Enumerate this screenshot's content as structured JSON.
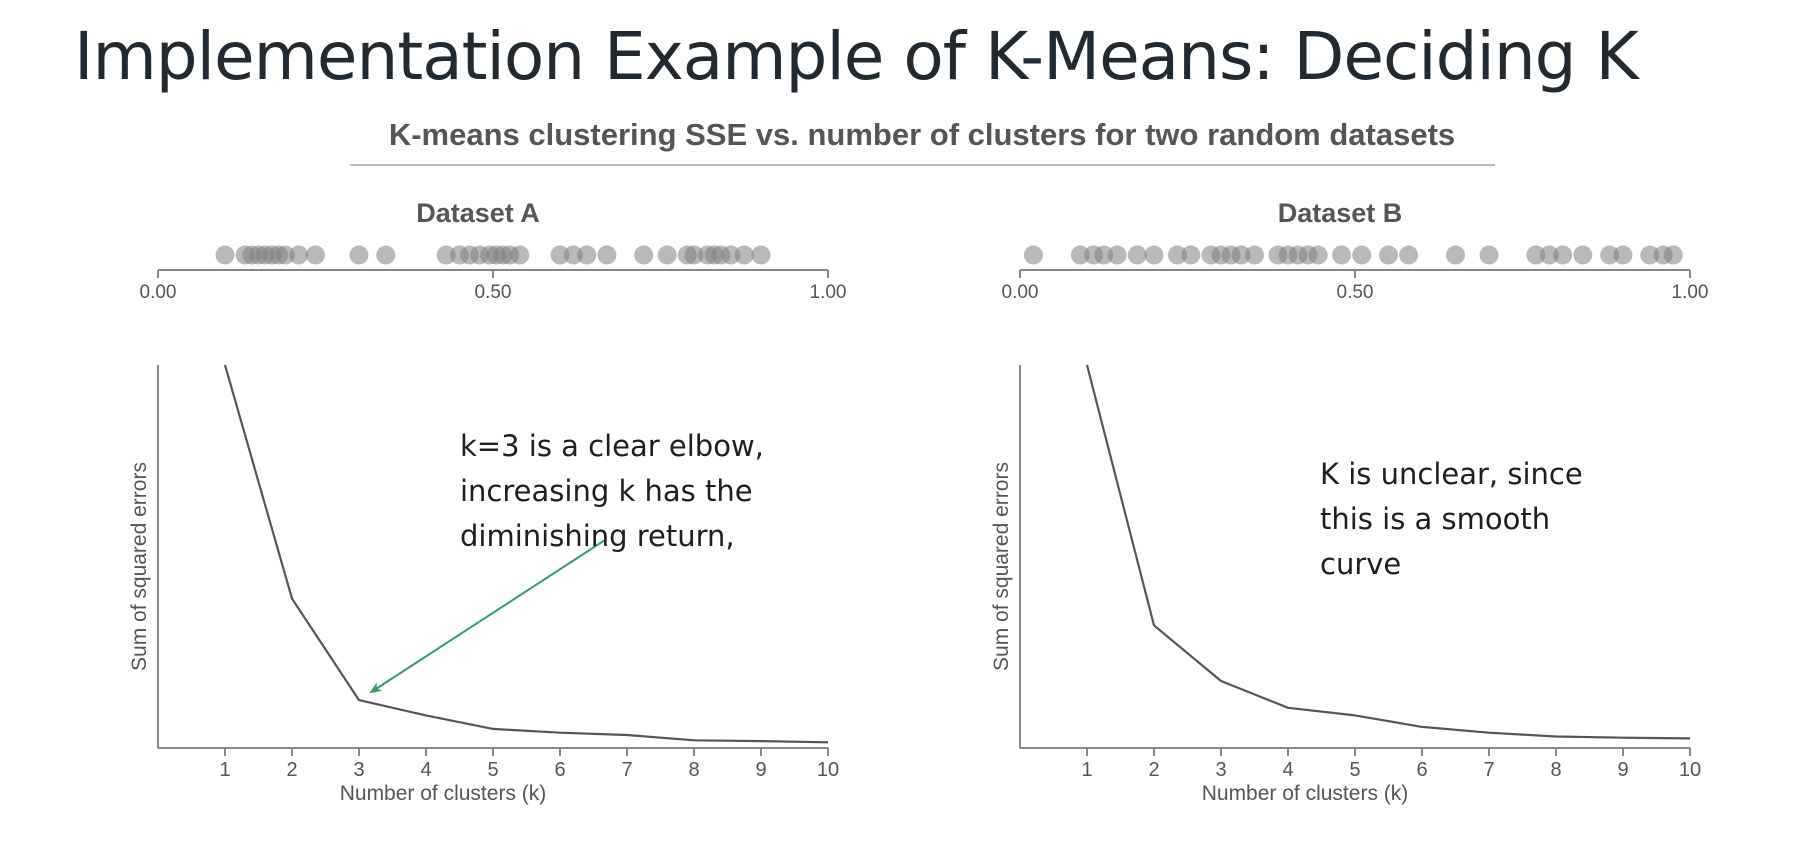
{
  "slide": {
    "title": "Implementation Example of K-Means: Deciding K"
  },
  "chart_data": {
    "type": "line",
    "title": "K-means clustering SSE vs. number of clusters for two random datasets",
    "style": {
      "line_color": "#555555",
      "dot_color": "#808080",
      "arrow_color": "#3a9a6a",
      "text_color": "#555555"
    },
    "panels": [
      {
        "name": "Dataset A",
        "strip": {
          "ticks": [
            0,
            0.5,
            1
          ],
          "tick_labels": [
            "0.00",
            "0.50",
            "1.00"
          ],
          "xlim": [
            0,
            1
          ],
          "points": [
            0.1,
            0.13,
            0.14,
            0.15,
            0.16,
            0.17,
            0.18,
            0.19,
            0.21,
            0.235,
            0.3,
            0.34,
            0.43,
            0.45,
            0.465,
            0.48,
            0.495,
            0.505,
            0.515,
            0.525,
            0.54,
            0.6,
            0.62,
            0.64,
            0.67,
            0.725,
            0.76,
            0.79,
            0.8,
            0.82,
            0.83,
            0.84,
            0.855,
            0.875,
            0.9
          ]
        },
        "line": {
          "xlabel": "Number of clusters (k)",
          "ylabel": "Sum of squared errors",
          "x": [
            1,
            2,
            3,
            4,
            5,
            6,
            7,
            8,
            9,
            10
          ],
          "y": [
            100,
            39,
            12.5,
            8.5,
            5,
            4,
            3.4,
            2,
            1.8,
            1.5
          ],
          "xlim": [
            0,
            10
          ],
          "ylim": [
            0,
            100
          ],
          "x_ticks": [
            1,
            2,
            3,
            4,
            5,
            6,
            7,
            8,
            9,
            10
          ],
          "x_tick_labels": [
            "1",
            "2",
            "3",
            "4",
            "5",
            "6",
            "7",
            "8",
            "9",
            "10"
          ]
        },
        "annotation": {
          "lines": [
            "k=3 is a clear elbow,",
            "increasing k has the",
            "diminishing return,"
          ],
          "arrow_to": {
            "x": 3,
            "y": 12.5
          }
        }
      },
      {
        "name": "Dataset B",
        "strip": {
          "ticks": [
            0,
            0.5,
            1
          ],
          "tick_labels": [
            "0.00",
            "0.50",
            "1.00"
          ],
          "xlim": [
            0,
            1
          ],
          "points": [
            0.02,
            0.09,
            0.11,
            0.125,
            0.145,
            0.175,
            0.2,
            0.235,
            0.255,
            0.285,
            0.3,
            0.315,
            0.33,
            0.35,
            0.385,
            0.4,
            0.415,
            0.43,
            0.445,
            0.48,
            0.51,
            0.55,
            0.58,
            0.65,
            0.7,
            0.77,
            0.79,
            0.81,
            0.84,
            0.88,
            0.9,
            0.94,
            0.96,
            0.975
          ]
        },
        "line": {
          "xlabel": "Number of clusters (k)",
          "ylabel": "Sum of squared errors",
          "x": [
            1,
            2,
            3,
            4,
            5,
            6,
            7,
            8,
            9,
            10
          ],
          "y": [
            100,
            32,
            17.5,
            10.5,
            8.5,
            5.5,
            4,
            3,
            2.7,
            2.5
          ],
          "xlim": [
            0,
            10
          ],
          "ylim": [
            0,
            100
          ],
          "x_ticks": [
            1,
            2,
            3,
            4,
            5,
            6,
            7,
            8,
            9,
            10
          ],
          "x_tick_labels": [
            "1",
            "2",
            "3",
            "4",
            "5",
            "6",
            "7",
            "8",
            "9",
            "10"
          ]
        },
        "annotation": {
          "lines": [
            "K is unclear, since",
            "this is a smooth",
            "curve"
          ]
        }
      }
    ]
  }
}
